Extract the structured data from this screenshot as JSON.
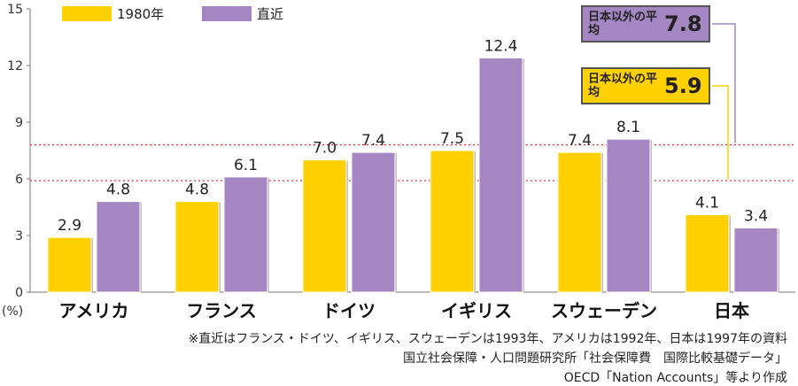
{
  "chart_data": {
    "type": "bar",
    "ylabel": "(%)",
    "ylim": [
      0,
      15
    ],
    "yticks": [
      0,
      3,
      6,
      9,
      12,
      15
    ],
    "categories": [
      "アメリカ",
      "フランス",
      "ドイツ",
      "イギリス",
      "スウェーデン",
      "日本"
    ],
    "series": [
      {
        "name": "1980年",
        "color": "#FFD100",
        "values": [
          2.9,
          4.8,
          7.0,
          7.5,
          7.4,
          4.1
        ]
      },
      {
        "name": "直近",
        "color": "#A487C2",
        "values": [
          4.8,
          6.1,
          7.4,
          12.4,
          8.1,
          3.4
        ]
      }
    ],
    "value_labels": [
      [
        "2.9",
        "4.8",
        "7.0",
        "7.5",
        "7.4",
        "4.1"
      ],
      [
        "4.8",
        "6.1",
        "7.4",
        "12.4",
        "8.1",
        "3.4"
      ]
    ],
    "reference_lines": [
      {
        "series": "直近",
        "label": "日本以外の平均",
        "value": 7.8,
        "display": "7.8",
        "color": "#A487C2"
      },
      {
        "series": "1980年",
        "label": "日本以外の平均",
        "value": 5.9,
        "display": "5.9",
        "color": "#FFD100"
      }
    ],
    "legend_position": "top-left"
  },
  "notes": [
    "※直近はフランス・ドイツ、イギリス、スウェーデンは1993年、アメリカは1992年、日本は1997年の資料",
    "国立社会保障・人口問題研究所「社会保障費　国際比較基礎データ」",
    "OECD「Nation Accounts」等より作成"
  ]
}
